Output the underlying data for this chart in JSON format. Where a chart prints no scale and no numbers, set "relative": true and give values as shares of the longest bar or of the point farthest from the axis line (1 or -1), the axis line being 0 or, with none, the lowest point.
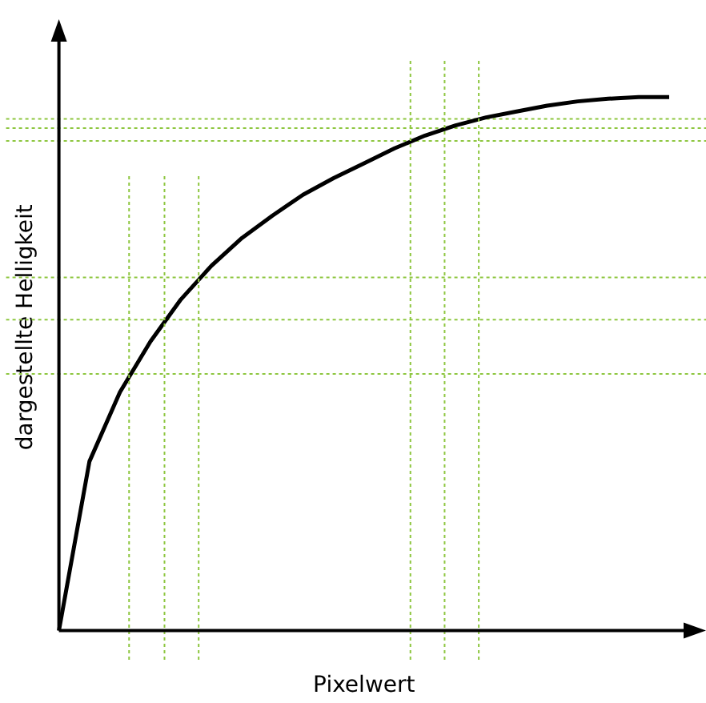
{
  "chart_data": {
    "type": "line",
    "relative": true,
    "xlabel": "Pixelwert",
    "ylabel": "dargestellte Helligkeit",
    "grid": false,
    "legend": false,
    "marker": "none",
    "line_style": "solid",
    "categories": [
      null,
      null,
      null,
      null,
      null,
      null,
      null,
      null,
      null,
      null,
      null,
      null,
      null,
      null,
      null,
      null,
      null,
      null,
      null,
      null,
      null
    ],
    "series": [
      {
        "color": "#000000",
        "values": [
          0,
          0.317,
          0.447,
          0.542,
          0.621,
          0.684,
          0.736,
          0.778,
          0.817,
          0.848,
          0.876,
          0.904,
          0.928,
          0.947,
          0.962,
          0.973,
          0.984,
          0.992,
          0.997,
          1,
          1
        ]
      }
    ],
    "ref_lines": [
      {
        "axis": "y",
        "value": 0.481,
        "color": "#8dc63f",
        "line_style": "dotted"
      },
      {
        "axis": "y",
        "value": 0.583,
        "color": "#8dc63f",
        "line_style": "dotted"
      },
      {
        "axis": "y",
        "value": 0.662,
        "color": "#8dc63f",
        "line_style": "dotted"
      },
      {
        "axis": "y",
        "value": 0.918,
        "color": "#8dc63f",
        "line_style": "dotted"
      },
      {
        "axis": "y",
        "value": 0.942,
        "color": "#8dc63f",
        "line_style": "dotted"
      },
      {
        "axis": "y",
        "value": 0.959,
        "color": "#8dc63f",
        "line_style": "dotted"
      }
    ]
  }
}
